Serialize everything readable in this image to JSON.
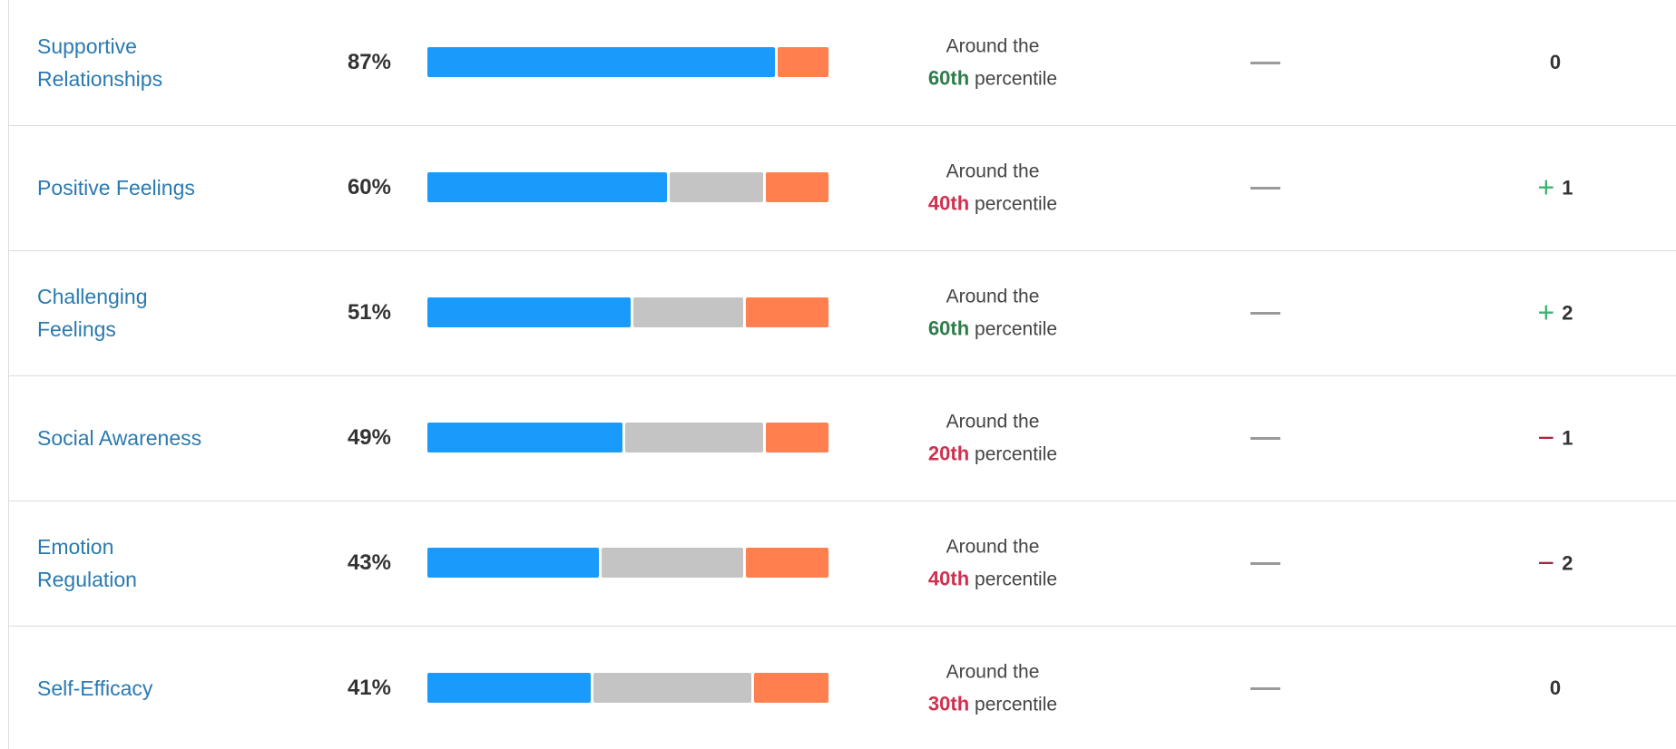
{
  "bar_colors": [
    "#1a9bfc",
    "#c4c4c4",
    "#ff7f4f"
  ],
  "rank_colors": {
    "high": "#2e7d4a",
    "low": "#d0304f"
  },
  "sign_colors": {
    "+": "#3cb371",
    "−": "#b0243a"
  },
  "rows": [
    {
      "name": [
        "Supportive",
        "Relationships"
      ],
      "score": {
        "value": 87,
        "label": "87%"
      },
      "bar": [
        87,
        0,
        13
      ],
      "percentile": {
        "prefix": "Around the",
        "rank": "60th",
        "suffix": "percentile",
        "level": "high"
      },
      "change_sign": null,
      "change": 0
    },
    {
      "name": [
        "Positive Feelings"
      ],
      "score": {
        "value": 60,
        "label": "60%"
      },
      "bar": [
        60,
        24,
        16
      ],
      "percentile": {
        "prefix": "Around the",
        "rank": "40th",
        "suffix": "percentile",
        "level": "low"
      },
      "change_sign": "+",
      "change": 1
    },
    {
      "name": [
        "Challenging",
        "Feelings"
      ],
      "score": {
        "value": 51,
        "label": "51%"
      },
      "bar": [
        51,
        28,
        21
      ],
      "percentile": {
        "prefix": "Around the",
        "rank": "60th",
        "suffix": "percentile",
        "level": "high"
      },
      "change_sign": "+",
      "change": 2
    },
    {
      "name": [
        "Social Awareness"
      ],
      "score": {
        "value": 49,
        "label": "49%"
      },
      "bar": [
        49,
        35,
        16
      ],
      "percentile": {
        "prefix": "Around the",
        "rank": "20th",
        "suffix": "percentile",
        "level": "low"
      },
      "change_sign": "−",
      "change": 1
    },
    {
      "name": [
        "Emotion",
        "Regulation"
      ],
      "score": {
        "value": 43,
        "label": "43%"
      },
      "bar": [
        43,
        36,
        21
      ],
      "percentile": {
        "prefix": "Around the",
        "rank": "40th",
        "suffix": "percentile",
        "level": "low"
      },
      "change_sign": "−",
      "change": 2
    },
    {
      "name": [
        "Self-Efficacy"
      ],
      "score": {
        "value": 41,
        "label": "41%"
      },
      "bar": [
        41,
        40,
        19
      ],
      "percentile": {
        "prefix": "Around the",
        "rank": "30th",
        "suffix": "percentile",
        "level": "low"
      },
      "change_sign": null,
      "change": 0
    }
  ]
}
